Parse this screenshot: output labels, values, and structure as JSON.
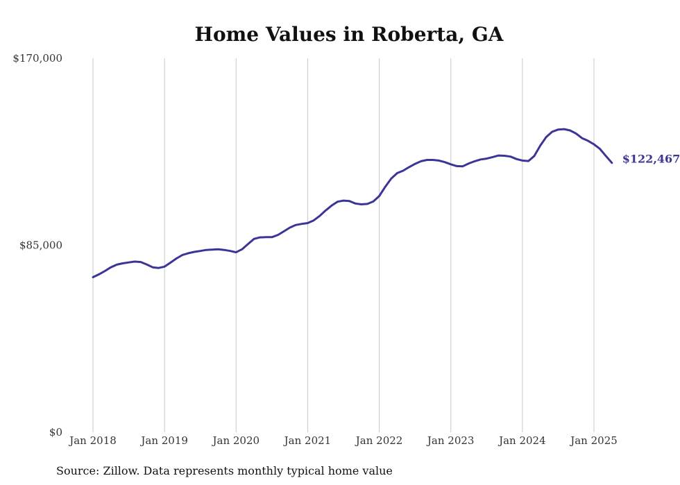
{
  "chart_data": {
    "type": "line",
    "title": "Home Values in Roberta, GA",
    "xlabel": "",
    "ylabel": "",
    "ylim": [
      0,
      170000
    ],
    "y_ticks": [
      {
        "value": 0,
        "label": "$0"
      },
      {
        "value": 85000,
        "label": "$85,000"
      },
      {
        "value": 170000,
        "label": "$170,000"
      }
    ],
    "x_ticks": [
      {
        "value": "2018-01",
        "label": "Jan 2018"
      },
      {
        "value": "2019-01",
        "label": "Jan 2019"
      },
      {
        "value": "2020-01",
        "label": "Jan 2020"
      },
      {
        "value": "2021-01",
        "label": "Jan 2021"
      },
      {
        "value": "2022-01",
        "label": "Jan 2022"
      },
      {
        "value": "2023-01",
        "label": "Jan 2023"
      },
      {
        "value": "2024-01",
        "label": "Jan 2024"
      },
      {
        "value": "2025-01",
        "label": "Jan 2025"
      }
    ],
    "grid": "vertical",
    "legend": "none",
    "series": [
      {
        "color": "#3b3598",
        "end_label": "$122,467",
        "points": [
          [
            "2018-01",
            70500
          ],
          [
            "2018-02",
            71800
          ],
          [
            "2018-03",
            73300
          ],
          [
            "2018-04",
            75000
          ],
          [
            "2018-05",
            76200
          ],
          [
            "2018-06",
            76800
          ],
          [
            "2018-07",
            77200
          ],
          [
            "2018-08",
            77600
          ],
          [
            "2018-09",
            77400
          ],
          [
            "2018-10",
            76300
          ],
          [
            "2018-11",
            75000
          ],
          [
            "2018-12",
            74700
          ],
          [
            "2019-01",
            75300
          ],
          [
            "2019-02",
            77100
          ],
          [
            "2019-03",
            79000
          ],
          [
            "2019-04",
            80600
          ],
          [
            "2019-05",
            81400
          ],
          [
            "2019-06",
            82000
          ],
          [
            "2019-07",
            82400
          ],
          [
            "2019-08",
            82900
          ],
          [
            "2019-09",
            83000
          ],
          [
            "2019-10",
            83200
          ],
          [
            "2019-11",
            82900
          ],
          [
            "2019-12",
            82400
          ],
          [
            "2020-01",
            81800
          ],
          [
            "2020-02",
            83200
          ],
          [
            "2020-03",
            85600
          ],
          [
            "2020-04",
            87900
          ],
          [
            "2020-05",
            88600
          ],
          [
            "2020-06",
            88700
          ],
          [
            "2020-07",
            88700
          ],
          [
            "2020-08",
            89700
          ],
          [
            "2020-09",
            91300
          ],
          [
            "2020-10",
            93000
          ],
          [
            "2020-11",
            94200
          ],
          [
            "2020-12",
            94700
          ],
          [
            "2021-01",
            95100
          ],
          [
            "2021-02",
            96300
          ],
          [
            "2021-03",
            98300
          ],
          [
            "2021-04",
            100800
          ],
          [
            "2021-05",
            103000
          ],
          [
            "2021-06",
            104800
          ],
          [
            "2021-07",
            105300
          ],
          [
            "2021-08",
            105100
          ],
          [
            "2021-09",
            104000
          ],
          [
            "2021-10",
            103600
          ],
          [
            "2021-11",
            103800
          ],
          [
            "2021-12",
            104900
          ],
          [
            "2022-01",
            107400
          ],
          [
            "2022-02",
            111600
          ],
          [
            "2022-03",
            115300
          ],
          [
            "2022-04",
            117800
          ],
          [
            "2022-05",
            118900
          ],
          [
            "2022-06",
            120500
          ],
          [
            "2022-07",
            122000
          ],
          [
            "2022-08",
            123200
          ],
          [
            "2022-09",
            123800
          ],
          [
            "2022-10",
            123800
          ],
          [
            "2022-11",
            123500
          ],
          [
            "2022-12",
            122800
          ],
          [
            "2023-01",
            121800
          ],
          [
            "2023-02",
            121000
          ],
          [
            "2023-03",
            120900
          ],
          [
            "2023-04",
            122200
          ],
          [
            "2023-05",
            123200
          ],
          [
            "2023-06",
            124000
          ],
          [
            "2023-07",
            124400
          ],
          [
            "2023-08",
            125100
          ],
          [
            "2023-09",
            125800
          ],
          [
            "2023-10",
            125700
          ],
          [
            "2023-11",
            125300
          ],
          [
            "2023-12",
            124200
          ],
          [
            "2024-01",
            123500
          ],
          [
            "2024-02",
            123300
          ],
          [
            "2024-03",
            125600
          ],
          [
            "2024-04",
            130300
          ],
          [
            "2024-05",
            134200
          ],
          [
            "2024-06",
            136600
          ],
          [
            "2024-07",
            137600
          ],
          [
            "2024-08",
            137800
          ],
          [
            "2024-09",
            137200
          ],
          [
            "2024-10",
            135800
          ],
          [
            "2024-11",
            133700
          ],
          [
            "2024-12",
            132500
          ],
          [
            "2025-01",
            130900
          ],
          [
            "2025-02",
            128800
          ],
          [
            "2025-03",
            125600
          ],
          [
            "2025-04",
            122467
          ]
        ]
      }
    ]
  },
  "source_note": "Source: Zillow. Data represents monthly typical home value"
}
